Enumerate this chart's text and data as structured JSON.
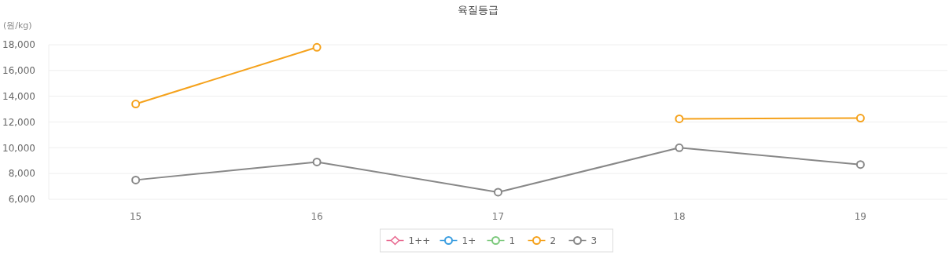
{
  "chart_data": {
    "type": "line",
    "title": "육질등급",
    "ylabel": "(원/kg)",
    "categories": [
      "15",
      "16",
      "17",
      "18",
      "19"
    ],
    "series": [
      {
        "name": "1++",
        "color": "#e8688f",
        "marker": "diamond",
        "values": [
          null,
          null,
          null,
          null,
          null
        ]
      },
      {
        "name": "1+",
        "color": "#3b9ee0",
        "marker": "circle",
        "values": [
          null,
          null,
          null,
          null,
          null
        ]
      },
      {
        "name": "1",
        "color": "#7dc97d",
        "marker": "circle",
        "values": [
          null,
          null,
          null,
          null,
          null
        ]
      },
      {
        "name": "2",
        "color": "#f5a21c",
        "marker": "circle",
        "values": [
          13400,
          17800,
          null,
          12250,
          12300
        ]
      },
      {
        "name": "3",
        "color": "#888888",
        "marker": "circle",
        "values": [
          7500,
          8900,
          6550,
          10000,
          8700
        ]
      }
    ],
    "ylim": [
      6000,
      18000
    ],
    "yticks": [
      {
        "value": 6000,
        "label": "6,000"
      },
      {
        "value": 8000,
        "label": "8,000"
      },
      {
        "value": 10000,
        "label": "10,000"
      },
      {
        "value": 12000,
        "label": "12,000"
      },
      {
        "value": 14000,
        "label": "14,000"
      },
      {
        "value": 16000,
        "label": "16,000"
      },
      {
        "value": 18000,
        "label": "18,000"
      }
    ],
    "grid": "y",
    "legend": "bottom",
    "line_style": "solid"
  }
}
